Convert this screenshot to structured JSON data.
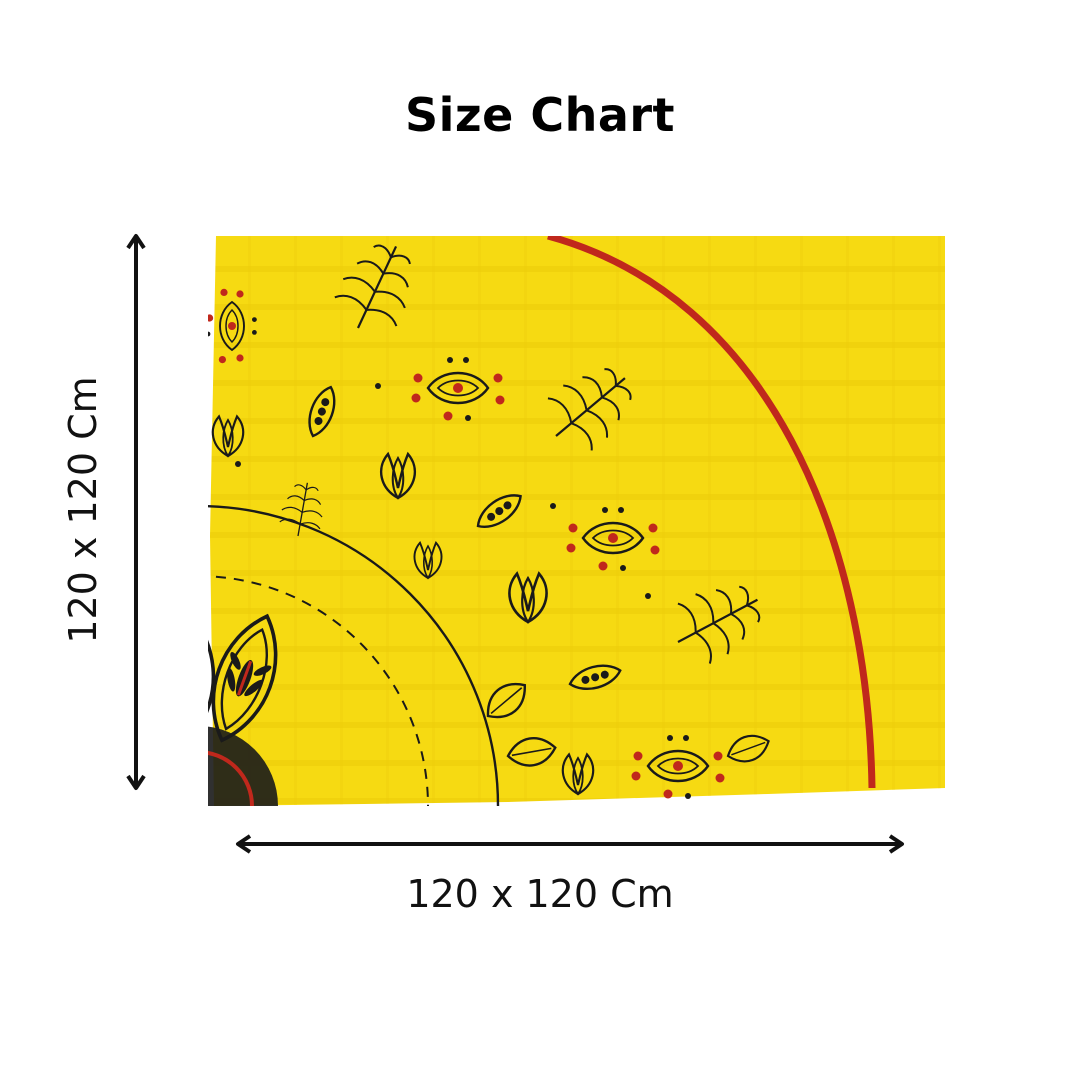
{
  "title": "Size Chart",
  "dimensions": {
    "width_label": "120 x 120 Cm",
    "height_label": "120 x 120 Cm"
  },
  "colors": {
    "fabric": "#f5d90f",
    "fabric_shadow": "#e9c80a",
    "ink": "#1a1a1a",
    "accent_red": "#c0281c",
    "arrow": "#111111"
  },
  "image": {
    "subject": "yellow printed cotton fabric with black mandala and red border arc"
  }
}
